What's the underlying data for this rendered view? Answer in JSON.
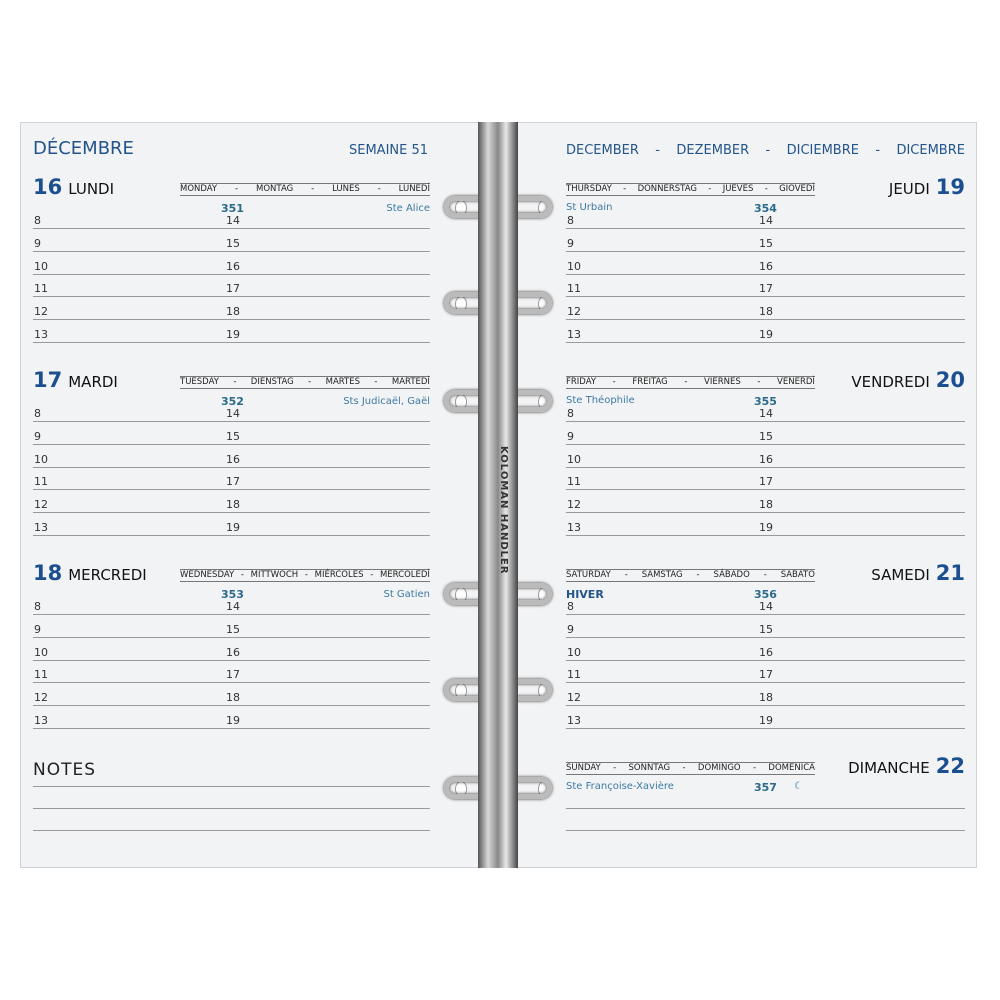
{
  "left_page": {
    "month": "DÉCEMBRE",
    "week": "SEMAINE 51",
    "days": [
      {
        "num": "16",
        "name": "LUNDI",
        "langs": [
          "MONDAY",
          "-",
          "MONTAG",
          "-",
          "LUNES",
          "-",
          "LUNEDÌ"
        ],
        "doy": "351",
        "saint": "Ste Alice"
      },
      {
        "num": "17",
        "name": "MARDI",
        "langs": [
          "TUESDAY",
          "-",
          "DIENSTAG",
          "-",
          "MARTES",
          "-",
          "MARTEDÌ"
        ],
        "doy": "352",
        "saint": "Sts Judicaël, Gaël"
      },
      {
        "num": "18",
        "name": "MERCREDI",
        "langs": [
          "WEDNESDAY",
          "-",
          "MITTWOCH",
          "-",
          "MIÉRCOLES",
          "-",
          "MERCOLEDÌ"
        ],
        "doy": "353",
        "saint": "St Gatien"
      }
    ],
    "hours_left": [
      "8",
      "9",
      "10",
      "11",
      "12",
      "13"
    ],
    "hours_right": [
      "14",
      "15",
      "16",
      "17",
      "18",
      "19"
    ],
    "notes_label": "NOTES"
  },
  "right_page": {
    "month_multilang": "DECEMBER  -  DEZEMBER  -  DICIEMBRE  -  DICEMBRE",
    "days": [
      {
        "num": "19",
        "name": "JEUDI",
        "langs": [
          "THURSDAY",
          "-",
          "DONNERSTAG",
          "-",
          "JUEVES",
          "-",
          "GIOVEDÌ"
        ],
        "doy": "354",
        "saint": "St Urbain"
      },
      {
        "num": "20",
        "name": "VENDREDI",
        "langs": [
          "FRIDAY",
          "-",
          "FREITAG",
          "-",
          "VIERNES",
          "-",
          "VENERDÌ"
        ],
        "doy": "355",
        "saint": "Ste Théophile"
      },
      {
        "num": "21",
        "name": "SAMEDI",
        "langs": [
          "SATURDAY",
          "-",
          "SAMSTAG",
          "-",
          "SÁBADO",
          "-",
          "SABATO"
        ],
        "doy": "356",
        "saint": "HIVER",
        "saint_bold": true
      },
      {
        "num": "22",
        "name": "DIMANCHE",
        "langs": [
          "SUNDAY",
          "-",
          "SONNTAG",
          "-",
          "DOMINGO",
          "-",
          "DOMENICA"
        ],
        "doy": "357",
        "saint": "Ste Françoise-Xavière",
        "moon": "☾",
        "sunday": true
      }
    ]
  },
  "binder_brand": "KOLOMAN HANDLER",
  "colors": {
    "accent": "#1c4f8f",
    "saint": "#3e7aa0",
    "paper": "#f2f3f5"
  }
}
